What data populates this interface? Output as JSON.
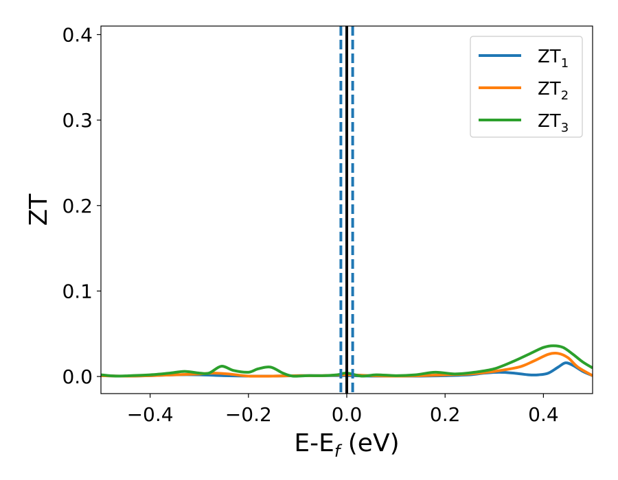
{
  "chart_data": {
    "type": "line",
    "title": "",
    "xlabel": {
      "main": "E-E",
      "sub": "f",
      "unit": " (eV)"
    },
    "ylabel": "ZT",
    "xlim": [
      -0.5,
      0.5
    ],
    "ylim": [
      -0.02,
      0.41
    ],
    "x_ticks": [
      -0.4,
      -0.2,
      0.0,
      0.2,
      0.4
    ],
    "x_tick_labels": [
      "−0.4",
      "−0.2",
      "0.0",
      "0.2",
      "0.4"
    ],
    "y_ticks": [
      0.0,
      0.1,
      0.2,
      0.3,
      0.4
    ],
    "y_tick_labels": [
      "0.0",
      "0.1",
      "0.2",
      "0.3",
      "0.4"
    ],
    "grid": false,
    "legend_position": "top-right",
    "vertical_lines": [
      {
        "x": -0.012,
        "style": "dashed",
        "color": "#1f77b4"
      },
      {
        "x": 0.0,
        "style": "solid",
        "color": "#000000"
      },
      {
        "x": 0.012,
        "style": "dashed",
        "color": "#1f77b4"
      }
    ],
    "series": [
      {
        "name": "ZT",
        "sub": "1",
        "color": "#1f77b4",
        "x": [
          -0.5,
          -0.45,
          -0.4,
          -0.35,
          -0.3,
          -0.25,
          -0.2,
          -0.15,
          -0.1,
          -0.05,
          0.0,
          0.05,
          0.1,
          0.15,
          0.2,
          0.25,
          0.28,
          0.31,
          0.34,
          0.37,
          0.39,
          0.41,
          0.43,
          0.445,
          0.46,
          0.48,
          0.5
        ],
        "y": [
          0.001,
          0.0005,
          0.001,
          0.002,
          0.002,
          0.001,
          0.0005,
          0.0005,
          0.001,
          0.001,
          0.001,
          0.0005,
          0.0005,
          0.0005,
          0.001,
          0.002,
          0.004,
          0.005,
          0.004,
          0.002,
          0.002,
          0.004,
          0.011,
          0.016,
          0.013,
          0.006,
          0.001
        ]
      },
      {
        "name": "ZT",
        "sub": "2",
        "color": "#ff7f0e",
        "x": [
          -0.5,
          -0.45,
          -0.4,
          -0.35,
          -0.3,
          -0.27,
          -0.24,
          -0.2,
          -0.15,
          -0.1,
          -0.05,
          0.0,
          0.05,
          0.1,
          0.15,
          0.2,
          0.25,
          0.3,
          0.35,
          0.38,
          0.41,
          0.43,
          0.45,
          0.47,
          0.5
        ],
        "y": [
          0.001,
          0.0005,
          0.001,
          0.002,
          0.003,
          0.004,
          0.003,
          0.0005,
          0.0005,
          0.001,
          0.001,
          0.002,
          0.001,
          0.0005,
          0.001,
          0.002,
          0.003,
          0.006,
          0.011,
          0.018,
          0.026,
          0.027,
          0.022,
          0.011,
          0.001
        ]
      },
      {
        "name": "ZT",
        "sub": "3",
        "color": "#2ca02c",
        "x": [
          -0.5,
          -0.47,
          -0.44,
          -0.4,
          -0.36,
          -0.33,
          -0.3,
          -0.28,
          -0.255,
          -0.23,
          -0.2,
          -0.18,
          -0.155,
          -0.13,
          -0.11,
          -0.08,
          -0.05,
          -0.02,
          0.0,
          0.03,
          0.06,
          0.1,
          0.14,
          0.18,
          0.22,
          0.26,
          0.3,
          0.34,
          0.37,
          0.4,
          0.42,
          0.44,
          0.46,
          0.48,
          0.5
        ],
        "y": [
          0.002,
          0.0005,
          0.001,
          0.002,
          0.004,
          0.006,
          0.004,
          0.004,
          0.012,
          0.007,
          0.005,
          0.009,
          0.011,
          0.004,
          0.0005,
          0.001,
          0.001,
          0.002,
          0.004,
          0.0005,
          0.002,
          0.001,
          0.002,
          0.005,
          0.003,
          0.005,
          0.009,
          0.018,
          0.026,
          0.034,
          0.036,
          0.034,
          0.026,
          0.017,
          0.01
        ]
      }
    ]
  }
}
